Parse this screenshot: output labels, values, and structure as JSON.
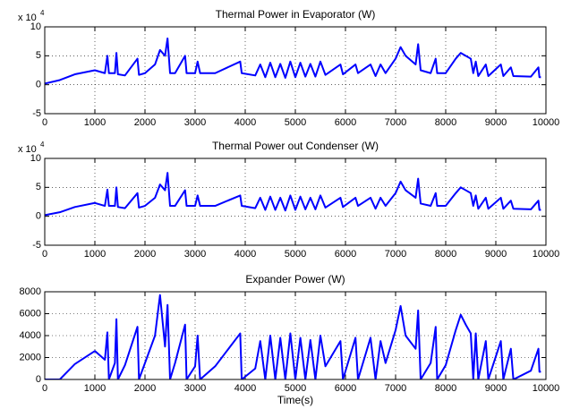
{
  "chart_data": [
    {
      "type": "line",
      "title": "Thermal Power in Evaporator (W)",
      "y_multiplier": {
        "base": "x 10",
        "exponent": "4"
      },
      "color": "#0000ff",
      "grid": true,
      "xlim": [
        0,
        10000
      ],
      "xticks": [
        0,
        1000,
        2000,
        3000,
        4000,
        5000,
        6000,
        7000,
        8000,
        9000,
        10000
      ],
      "ylim": [
        -5,
        10
      ],
      "yticks": [
        -5,
        0,
        5,
        10
      ],
      "x": [
        0,
        300,
        600,
        1000,
        1200,
        1250,
        1280,
        1400,
        1430,
        1460,
        1600,
        1850,
        1880,
        2000,
        2200,
        2300,
        2400,
        2450,
        2500,
        2600,
        2800,
        2830,
        3000,
        3050,
        3100,
        3400,
        3900,
        3930,
        4200,
        4300,
        4400,
        4500,
        4600,
        4700,
        4800,
        4900,
        5000,
        5100,
        5200,
        5300,
        5400,
        5500,
        5600,
        5900,
        5950,
        6200,
        6250,
        6500,
        6600,
        6700,
        6800,
        7000,
        7100,
        7200,
        7400,
        7450,
        7500,
        7700,
        7800,
        7830,
        8000,
        8200,
        8300,
        8400,
        8500,
        8550,
        8600,
        8650,
        8800,
        8850,
        9100,
        9150,
        9300,
        9350,
        9700,
        9850,
        9870,
        9900
      ],
      "values": [
        0.2,
        0.8,
        1.8,
        2.5,
        2.0,
        5.0,
        2.0,
        2.0,
        5.5,
        1.8,
        1.6,
        4.5,
        1.7,
        2.0,
        3.5,
        6.0,
        5.0,
        8.0,
        2.0,
        2.0,
        5.0,
        2.0,
        2.0,
        4.0,
        2.0,
        2.0,
        4.0,
        2.0,
        1.6,
        3.5,
        1.3,
        3.8,
        1.3,
        3.6,
        1.2,
        4.0,
        1.3,
        3.8,
        1.4,
        3.6,
        1.4,
        4.0,
        1.7,
        3.5,
        1.8,
        3.5,
        2.0,
        3.5,
        1.5,
        3.5,
        2.0,
        4.5,
        6.5,
        5.0,
        3.5,
        7.0,
        2.5,
        2.0,
        4.5,
        2.0,
        2.0,
        4.5,
        5.5,
        5.0,
        4.5,
        2.0,
        4.0,
        1.5,
        3.5,
        1.5,
        3.5,
        1.5,
        3.0,
        1.5,
        1.4,
        3.0,
        1.3,
        1.3
      ]
    },
    {
      "type": "line",
      "title": "Thermal Power out Condenser (W)",
      "y_multiplier": {
        "base": "x 10",
        "exponent": "4"
      },
      "color": "#0000ff",
      "grid": true,
      "xlim": [
        0,
        10000
      ],
      "xticks": [
        0,
        1000,
        2000,
        3000,
        4000,
        5000,
        6000,
        7000,
        8000,
        9000,
        10000
      ],
      "ylim": [
        -5,
        10
      ],
      "yticks": [
        -5,
        0,
        5,
        10
      ],
      "x": [
        0,
        300,
        600,
        1000,
        1200,
        1250,
        1280,
        1400,
        1430,
        1460,
        1600,
        1850,
        1880,
        2000,
        2200,
        2300,
        2400,
        2450,
        2500,
        2600,
        2800,
        2830,
        3000,
        3050,
        3100,
        3400,
        3900,
        3930,
        4200,
        4300,
        4400,
        4500,
        4600,
        4700,
        4800,
        4900,
        5000,
        5100,
        5200,
        5300,
        5400,
        5500,
        5600,
        5900,
        5950,
        6200,
        6250,
        6500,
        6600,
        6700,
        6800,
        7000,
        7100,
        7200,
        7400,
        7450,
        7500,
        7700,
        7800,
        7830,
        8000,
        8200,
        8300,
        8400,
        8500,
        8550,
        8600,
        8650,
        8800,
        8850,
        9100,
        9150,
        9300,
        9350,
        9700,
        9850,
        9870,
        9900
      ],
      "values": [
        0.2,
        0.7,
        1.6,
        2.3,
        1.8,
        4.6,
        1.8,
        1.8,
        5.0,
        1.6,
        1.4,
        4.0,
        1.5,
        1.8,
        3.2,
        5.5,
        4.5,
        7.5,
        1.8,
        1.8,
        4.5,
        1.8,
        1.8,
        3.6,
        1.8,
        1.8,
        3.6,
        1.8,
        1.4,
        3.2,
        1.1,
        3.4,
        1.1,
        3.2,
        1.0,
        3.6,
        1.1,
        3.4,
        1.2,
        3.2,
        1.2,
        3.6,
        1.5,
        3.2,
        1.6,
        3.2,
        1.8,
        3.2,
        1.3,
        3.2,
        1.8,
        4.0,
        6.0,
        4.5,
        3.2,
        6.5,
        2.2,
        1.8,
        4.0,
        1.8,
        1.8,
        4.0,
        5.0,
        4.5,
        4.0,
        1.8,
        3.6,
        1.3,
        3.2,
        1.3,
        3.2,
        1.3,
        2.7,
        1.3,
        1.2,
        2.7,
        1.1,
        1.1
      ]
    },
    {
      "type": "line",
      "title": "Expander Power (W)",
      "xlabel": "Time(s)",
      "color": "#0000ff",
      "grid": true,
      "xlim": [
        0,
        10000
      ],
      "xticks": [
        0,
        1000,
        2000,
        3000,
        4000,
        5000,
        6000,
        7000,
        8000,
        9000,
        10000
      ],
      "ylim": [
        0,
        8000
      ],
      "yticks": [
        0,
        2000,
        4000,
        6000,
        8000
      ],
      "x": [
        0,
        300,
        600,
        1000,
        1200,
        1250,
        1280,
        1400,
        1430,
        1460,
        1600,
        1850,
        1880,
        2000,
        2200,
        2300,
        2400,
        2450,
        2500,
        2600,
        2800,
        2830,
        3000,
        3050,
        3100,
        3400,
        3900,
        3930,
        4200,
        4300,
        4400,
        4500,
        4600,
        4700,
        4800,
        4900,
        5000,
        5100,
        5200,
        5300,
        5400,
        5500,
        5600,
        5900,
        5950,
        6200,
        6250,
        6500,
        6600,
        6700,
        6800,
        7000,
        7100,
        7200,
        7400,
        7450,
        7500,
        7700,
        7800,
        7830,
        8000,
        8200,
        8300,
        8400,
        8500,
        8550,
        8600,
        8650,
        8800,
        8850,
        9100,
        9150,
        9300,
        9350,
        9700,
        9850,
        9870,
        9900
      ],
      "values": [
        0,
        0,
        1400,
        2600,
        1800,
        4300,
        0,
        1500,
        5500,
        0,
        1300,
        4800,
        0,
        1500,
        4000,
        7700,
        3000,
        6800,
        0,
        1500,
        5000,
        0,
        1200,
        4000,
        0,
        1200,
        4200,
        0,
        1000,
        3500,
        0,
        4000,
        0,
        3800,
        0,
        4200,
        0,
        3800,
        0,
        3600,
        0,
        4000,
        1200,
        3500,
        0,
        3800,
        0,
        3800,
        0,
        3500,
        1500,
        4500,
        6700,
        4000,
        2800,
        6300,
        0,
        1500,
        4800,
        0,
        1300,
        4500,
        5900,
        5000,
        4200,
        0,
        4200,
        0,
        3500,
        0,
        3500,
        0,
        2800,
        0,
        800,
        2800,
        700,
        700
      ]
    }
  ]
}
